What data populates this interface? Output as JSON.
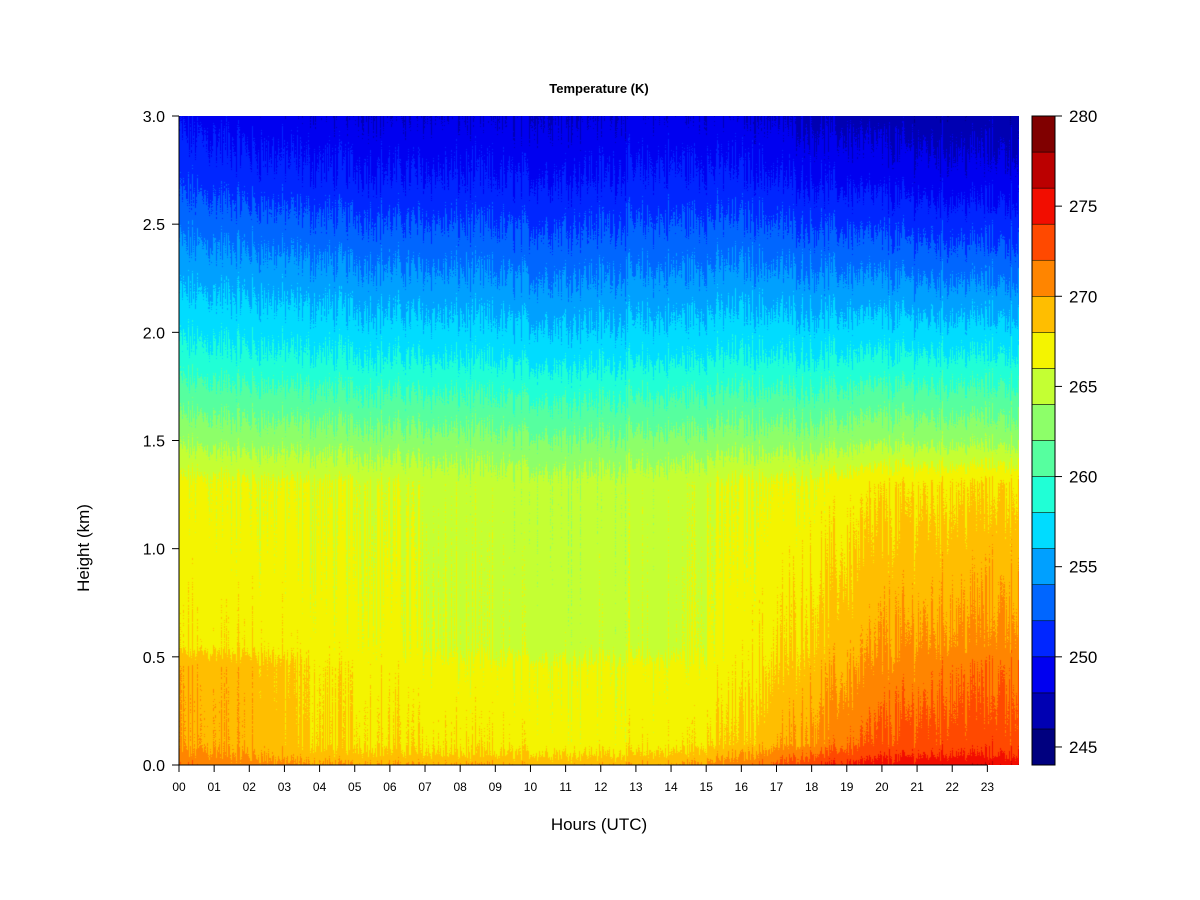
{
  "chart_data": {
    "type": "heatmap",
    "title": "Temperature (K)",
    "xlabel": "Hours (UTC)",
    "ylabel": "Height (km)",
    "x_ticks": [
      "00",
      "01",
      "02",
      "03",
      "04",
      "05",
      "06",
      "07",
      "08",
      "09",
      "10",
      "11",
      "12",
      "13",
      "14",
      "15",
      "16",
      "17",
      "18",
      "19",
      "20",
      "21",
      "22",
      "23"
    ],
    "xlim": [
      0,
      23.9
    ],
    "y_ticks": [
      "0.0",
      "0.5",
      "1.0",
      "1.5",
      "2.0",
      "2.5",
      "3.0"
    ],
    "ylim": [
      0,
      3.0
    ],
    "colorbar": {
      "ticks": [
        "245",
        "250",
        "255",
        "260",
        "265",
        "270",
        "275",
        "280"
      ],
      "range": [
        244,
        280
      ],
      "level_step": 2,
      "colors": [
        "#00007f",
        "#0000b2",
        "#0000f0",
        "#0026ff",
        "#0066ff",
        "#00a0ff",
        "#00dcff",
        "#20ffd6",
        "#56ff9f",
        "#8dff69",
        "#c4ff33",
        "#f4f400",
        "#ffbe00",
        "#ff8500",
        "#ff4900",
        "#f20d00",
        "#bb0000",
        "#800000"
      ]
    },
    "profiles": [
      {
        "hour": 0.0,
        "surface_K": 271.5,
        "height_km": [
          0.0,
          0.05,
          0.1,
          0.45,
          0.55,
          1.3,
          1.5,
          1.9,
          2.3,
          2.7,
          3.0
        ],
        "temperature_K": [
          271.5,
          270.5,
          269.8,
          269.5,
          267.5,
          266.5,
          263.5,
          258.5,
          255.0,
          251.5,
          249.5
        ]
      },
      {
        "hour": 2.0,
        "surface_K": 271.0,
        "height_km": [
          0.0,
          0.05,
          0.1,
          0.45,
          0.55,
          1.3,
          1.5,
          1.9,
          2.3,
          2.7,
          3.0
        ],
        "temperature_K": [
          271.0,
          270.0,
          269.5,
          269.2,
          267.5,
          266.3,
          263.2,
          258.3,
          254.8,
          251.0,
          249.0
        ]
      },
      {
        "hour": 4.0,
        "surface_K": 270.0,
        "height_km": [
          0.0,
          0.05,
          0.1,
          0.45,
          0.55,
          1.3,
          1.5,
          1.9,
          2.3,
          2.7,
          3.0
        ],
        "temperature_K": [
          270.0,
          268.8,
          268.0,
          267.5,
          267.0,
          266.0,
          263.0,
          258.0,
          254.3,
          250.5,
          248.5
        ]
      },
      {
        "hour": 6.0,
        "surface_K": 270.0,
        "height_km": [
          0.0,
          0.05,
          0.1,
          0.45,
          0.55,
          1.3,
          1.5,
          1.9,
          2.3,
          2.7,
          3.0
        ],
        "temperature_K": [
          270.0,
          268.5,
          267.8,
          267.2,
          266.8,
          265.8,
          262.8,
          257.8,
          254.0,
          250.3,
          248.2
        ]
      },
      {
        "hour": 8.0,
        "surface_K": 269.8,
        "height_km": [
          0.0,
          0.05,
          0.1,
          0.45,
          0.55,
          1.3,
          1.5,
          1.9,
          2.3,
          2.7,
          3.0
        ],
        "temperature_K": [
          269.8,
          268.0,
          267.5,
          266.5,
          265.5,
          265.0,
          262.6,
          257.6,
          253.8,
          250.2,
          248.2
        ]
      },
      {
        "hour": 10.0,
        "surface_K": 269.5,
        "height_km": [
          0.0,
          0.05,
          0.1,
          0.45,
          0.55,
          1.3,
          1.5,
          1.9,
          2.3,
          2.7,
          3.0
        ],
        "temperature_K": [
          269.5,
          268.0,
          267.2,
          266.5,
          265.2,
          264.8,
          262.3,
          257.3,
          253.5,
          250.0,
          248.0
        ]
      },
      {
        "hour": 12.0,
        "surface_K": 269.5,
        "height_km": [
          0.0,
          0.05,
          0.1,
          0.45,
          0.55,
          1.3,
          1.5,
          1.9,
          2.3,
          2.7,
          3.0
        ],
        "temperature_K": [
          269.5,
          268.0,
          267.0,
          266.5,
          265.2,
          264.8,
          262.3,
          257.3,
          253.6,
          250.2,
          248.2
        ]
      },
      {
        "hour": 14.0,
        "surface_K": 269.8,
        "height_km": [
          0.0,
          0.05,
          0.1,
          0.45,
          0.55,
          1.3,
          1.5,
          1.9,
          2.3,
          2.7,
          3.0
        ],
        "temperature_K": [
          269.8,
          268.2,
          267.2,
          266.5,
          265.3,
          265.0,
          262.5,
          257.5,
          253.8,
          250.5,
          248.5
        ]
      },
      {
        "hour": 16.0,
        "surface_K": 271.0,
        "height_km": [
          0.0,
          0.05,
          0.1,
          0.45,
          0.55,
          1.3,
          1.5,
          1.9,
          2.3,
          2.7,
          3.0
        ],
        "temperature_K": [
          271.0,
          269.8,
          268.5,
          267.2,
          267.0,
          266.2,
          263.0,
          258.0,
          254.2,
          250.5,
          248.3
        ]
      },
      {
        "hour": 18.0,
        "surface_K": 273.5,
        "height_km": [
          0.0,
          0.05,
          0.1,
          0.45,
          0.55,
          1.3,
          1.5,
          1.9,
          2.3,
          2.7,
          3.0
        ],
        "temperature_K": [
          273.5,
          272.0,
          270.5,
          269.0,
          268.5,
          266.5,
          263.0,
          257.8,
          253.8,
          249.8,
          247.5
        ]
      },
      {
        "hour": 20.0,
        "surface_K": 275.0,
        "height_km": [
          0.0,
          0.05,
          0.1,
          0.45,
          0.55,
          1.3,
          1.5,
          1.9,
          2.3,
          2.7,
          3.0
        ],
        "temperature_K": [
          275.0,
          273.5,
          272.5,
          270.5,
          270.0,
          267.5,
          263.5,
          258.0,
          253.5,
          249.3,
          247.0
        ]
      },
      {
        "hour": 22.0,
        "surface_K": 275.5,
        "height_km": [
          0.0,
          0.05,
          0.1,
          0.45,
          0.55,
          1.3,
          1.5,
          1.9,
          2.3,
          2.7,
          3.0
        ],
        "temperature_K": [
          275.5,
          274.0,
          273.0,
          271.5,
          270.5,
          267.8,
          263.5,
          258.0,
          253.2,
          249.0,
          246.8
        ]
      },
      {
        "hour": 23.9,
        "surface_K": 275.5,
        "height_km": [
          0.0,
          0.05,
          0.1,
          0.45,
          0.55,
          1.3,
          1.5,
          1.9,
          2.3,
          2.7,
          3.0
        ],
        "temperature_K": [
          275.5,
          274.0,
          273.0,
          271.8,
          270.8,
          268.0,
          263.5,
          258.0,
          253.2,
          249.0,
          246.8
        ]
      }
    ]
  }
}
